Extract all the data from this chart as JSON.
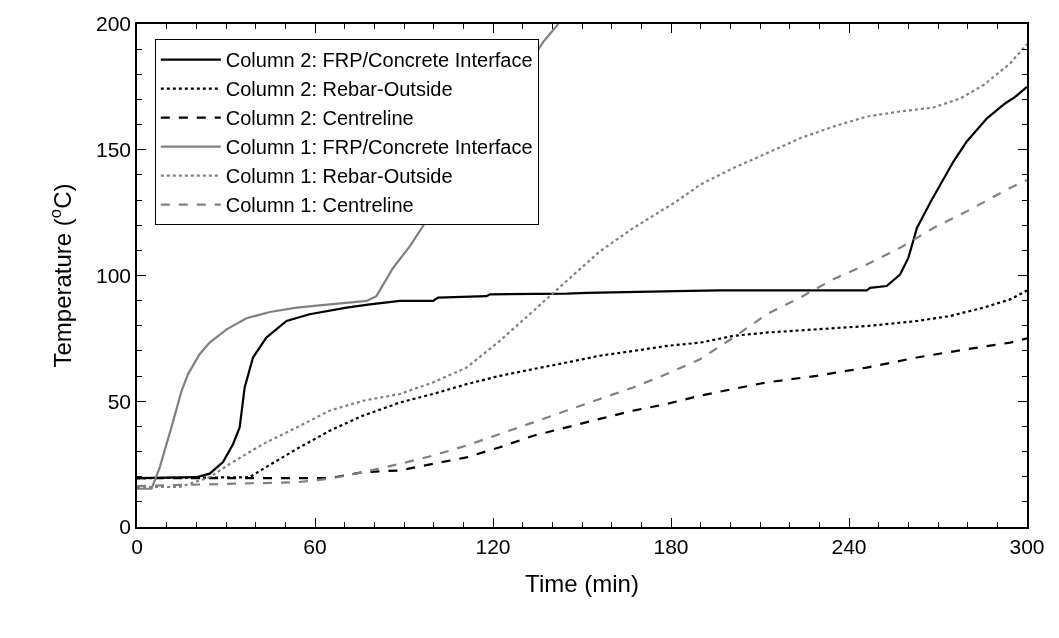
{
  "chart_data": {
    "type": "line",
    "xlabel": "Time (min)",
    "ylabel": "Temperature ($^{o}$C)",
    "xlim": [
      0,
      300
    ],
    "xticks": [
      0,
      60,
      120,
      180,
      240,
      300
    ],
    "ylim": [
      0,
      200
    ],
    "yticks": [
      0,
      50,
      100,
      150,
      200
    ],
    "grid": false,
    "legend": "top left",
    "marker": "none",
    "series": [
      {
        "name": "Column 2: FRP/Concrete Interface",
        "color": "#000000",
        "line_style": "solid",
        "x": [
          0,
          20,
          24.5,
          29,
          32.4,
          34.6,
          36.3,
          39.1,
          43.6,
          50.4,
          58.2,
          70.6,
          78.5,
          88.6,
          99.8,
          101.5,
          117.8,
          119,
          144.8,
          151.6,
          181.9,
          196.5,
          246,
          247.1,
          252.7,
          257.2,
          260,
          262.9,
          267.3,
          275.2,
          279.7,
          286.5,
          292.6,
          296,
          300
        ],
        "values": [
          19.4,
          19.8,
          21.2,
          25.8,
          33,
          39.6,
          55.5,
          67.4,
          75.3,
          81.9,
          84.6,
          87.2,
          88.5,
          89.9,
          89.9,
          91.2,
          91.8,
          92.5,
          92.8,
          93.1,
          93.8,
          94.1,
          94.1,
          95.1,
          95.8,
          100.4,
          107,
          118.9,
          128.8,
          145.3,
          153.3,
          162.5,
          168.4,
          171,
          175
        ]
      },
      {
        "name": "Column 2: Rebar-Outside",
        "color": "#000000",
        "line_style": "dotted",
        "x": [
          0,
          38,
          42.5,
          53.8,
          65,
          76.2,
          88.6,
          99.8,
          111.1,
          122.3,
          133.6,
          144.8,
          156,
          167.3,
          178.5,
          189.8,
          201,
          212.3,
          229.1,
          246,
          262.9,
          274.1,
          285.3,
          294.3,
          300
        ],
        "values": [
          19.4,
          19.8,
          23.1,
          31,
          38.3,
          44.3,
          49.5,
          52.9,
          56.8,
          60.1,
          62.8,
          65.4,
          68.1,
          70,
          72,
          73.3,
          76,
          77.3,
          78.6,
          79.9,
          81.9,
          83.9,
          87.2,
          90.5,
          94
        ]
      },
      {
        "name": "Column 2: Centreline",
        "color": "#000000",
        "line_style": "dashed",
        "x": [
          0,
          65,
          76.2,
          88.6,
          99.8,
          111.1,
          122.3,
          133.6,
          144.8,
          156,
          167.3,
          178.5,
          189.8,
          201,
          212.3,
          229.1,
          246,
          262.9,
          279.7,
          294.3,
          300
        ],
        "values": [
          19.4,
          19.4,
          21.8,
          22.5,
          25.1,
          27.7,
          31.7,
          36.3,
          39.6,
          43,
          46.3,
          48.9,
          52.2,
          54.9,
          57.5,
          60.1,
          63.4,
          67.4,
          70.7,
          73.3,
          75
        ]
      },
      {
        "name": "Column 1: FRP/Concrete Interface",
        "color": "#808080",
        "line_style": "solid",
        "x": [
          0,
          4.9,
          7.7,
          11.6,
          15,
          17.2,
          21.1,
          24.5,
          30.2,
          36.9,
          44.8,
          53.8,
          65,
          77.4,
          80.7,
          86.3,
          92,
          137,
          142
        ],
        "values": [
          15.2,
          15.2,
          23.8,
          39.6,
          54,
          60.8,
          68.7,
          73.3,
          78.6,
          83,
          85.5,
          87.2,
          88.5,
          89.9,
          91.8,
          103,
          111.7,
          193,
          200
        ]
      },
      {
        "name": "Column 1: Rebar-Outside",
        "color": "#808080",
        "line_style": "dotted",
        "x": [
          0,
          14.4,
          24.5,
          31.3,
          42.5,
          53.8,
          65,
          76.2,
          88.6,
          99.8,
          111.1,
          122.3,
          133.6,
          144.8,
          156,
          167.3,
          181.9,
          189.8,
          201,
          212.3,
          223.5,
          234.7,
          246,
          257.2,
          268.5,
          277.5,
          285.3,
          294.3,
          300
        ],
        "values": [
          15.9,
          15.9,
          19.8,
          25.1,
          33,
          39.6,
          46.3,
          50.2,
          52.9,
          57.5,
          63.4,
          74,
          85.9,
          97.8,
          109.6,
          118.9,
          129.5,
          136.1,
          142.7,
          148.6,
          154.6,
          159.2,
          163.2,
          165.2,
          166.8,
          170.4,
          175.7,
          184.3,
          192
        ]
      },
      {
        "name": "Column 1: Centreline",
        "color": "#808080",
        "line_style": "dashed",
        "x": [
          0,
          53.8,
          65,
          76.2,
          88.6,
          99.8,
          111.1,
          122.3,
          133.6,
          144.8,
          156,
          167.3,
          178.5,
          189.8,
          201,
          212.3,
          223.5,
          234.7,
          246,
          257.2,
          268.5,
          279.7,
          294.3,
          300
        ],
        "values": [
          16.3,
          17.8,
          19.2,
          21.8,
          25.1,
          28.4,
          32.4,
          37,
          41.6,
          46.3,
          50.9,
          55.5,
          60.8,
          66.7,
          75.3,
          84.6,
          91.2,
          98.5,
          104.4,
          111,
          118.9,
          125.5,
          134.8,
          138
        ]
      }
    ]
  }
}
